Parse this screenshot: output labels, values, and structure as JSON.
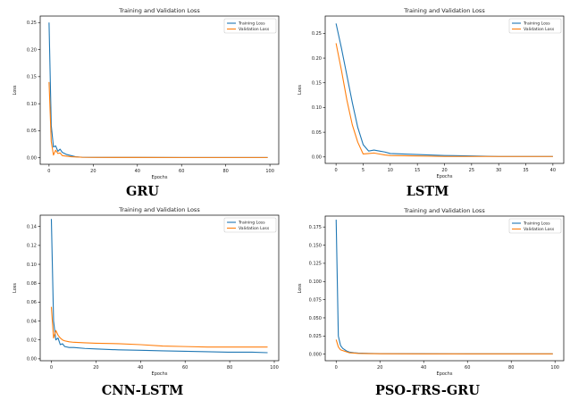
{
  "colors": {
    "training": "#1f77b4",
    "validation": "#ff7f0e",
    "axis": "#000000"
  },
  "chart_data": [
    {
      "type": "line",
      "caption": "GRU",
      "title": "Training and Validation Loss",
      "xlabel": "Epochs",
      "ylabel": "Loss",
      "xlim": [
        -4,
        104
      ],
      "ylim": [
        -0.012,
        0.262
      ],
      "xticks": [
        0,
        20,
        40,
        60,
        80,
        100
      ],
      "xtick_labels": [
        "0",
        "20",
        "40",
        "60",
        "80",
        "100"
      ],
      "yticks": [
        0.0,
        0.05,
        0.1,
        0.15,
        0.2,
        0.25
      ],
      "ytick_labels": [
        "0.00",
        "0.05",
        "0.10",
        "0.15",
        "0.20",
        "0.25"
      ],
      "legend": "top-right",
      "grid": false,
      "series": [
        {
          "name": "Training Loss",
          "x": [
            0,
            1,
            2,
            3,
            4,
            5,
            6,
            8,
            10,
            12,
            15,
            20,
            40,
            60,
            80,
            99
          ],
          "y": [
            0.25,
            0.06,
            0.02,
            0.022,
            0.012,
            0.016,
            0.01,
            0.006,
            0.004,
            0.002,
            0.001,
            0.0008,
            0.0007,
            0.0006,
            0.0006,
            0.0006
          ]
        },
        {
          "name": "Validation Loss",
          "x": [
            0,
            1,
            2,
            3,
            4,
            5,
            6,
            8,
            10,
            15,
            20,
            40,
            60,
            80,
            99
          ],
          "y": [
            0.14,
            0.03,
            0.005,
            0.014,
            0.008,
            0.009,
            0.004,
            0.003,
            0.002,
            0.001,
            0.0008,
            0.0007,
            0.0006,
            0.0006,
            0.0006
          ]
        }
      ]
    },
    {
      "type": "line",
      "caption": "LSTM",
      "title": "Training and Validation Loss",
      "xlabel": "Epochs",
      "ylabel": "Loss",
      "xlim": [
        -2,
        42
      ],
      "ylim": [
        -0.013,
        0.285
      ],
      "xticks": [
        0,
        5,
        10,
        15,
        20,
        25,
        30,
        35,
        40
      ],
      "xtick_labels": [
        "0",
        "5",
        "10",
        "15",
        "20",
        "25",
        "30",
        "35",
        "40"
      ],
      "yticks": [
        0.0,
        0.05,
        0.1,
        0.15,
        0.2,
        0.25
      ],
      "ytick_labels": [
        "0.00",
        "0.05",
        "0.10",
        "0.15",
        "0.20",
        "0.25"
      ],
      "legend": "top-right",
      "grid": false,
      "series": [
        {
          "name": "Training Loss",
          "x": [
            0,
            1,
            2,
            3,
            4,
            5,
            6,
            7,
            8,
            9,
            10,
            15,
            20,
            25,
            30,
            35,
            40
          ],
          "y": [
            0.27,
            0.22,
            0.165,
            0.11,
            0.06,
            0.025,
            0.012,
            0.014,
            0.012,
            0.01,
            0.007,
            0.005,
            0.003,
            0.002,
            0.001,
            0.001,
            0.001
          ]
        },
        {
          "name": "Validation Loss",
          "x": [
            0,
            1,
            2,
            3,
            4,
            5,
            6,
            7,
            8,
            9,
            10,
            15,
            20,
            25,
            30,
            35,
            40
          ],
          "y": [
            0.23,
            0.175,
            0.115,
            0.065,
            0.03,
            0.006,
            0.007,
            0.008,
            0.006,
            0.004,
            0.003,
            0.002,
            0.001,
            0.001,
            0.001,
            0.001,
            0.001
          ]
        }
      ]
    },
    {
      "type": "line",
      "caption": "CNN-LSTM",
      "title": "Training and Validation Loss",
      "xlabel": "Epochs",
      "ylabel": "Loss",
      "xlim": [
        -5,
        102
      ],
      "ylim": [
        -0.002,
        0.152
      ],
      "xticks": [
        0,
        20,
        40,
        60,
        80,
        100
      ],
      "xtick_labels": [
        "0",
        "20",
        "40",
        "60",
        "80",
        "100"
      ],
      "yticks": [
        0.0,
        0.02,
        0.04,
        0.06,
        0.08,
        0.1,
        0.12,
        0.14
      ],
      "ytick_labels": [
        "0.00",
        "0.02",
        "0.04",
        "0.06",
        "0.08",
        "0.10",
        "0.12",
        "0.14"
      ],
      "legend": "top-right",
      "grid": false,
      "series": [
        {
          "name": "Training Loss",
          "x": [
            0,
            1,
            2,
            3,
            4,
            5,
            6,
            8,
            10,
            15,
            20,
            30,
            40,
            50,
            60,
            70,
            80,
            90,
            97
          ],
          "y": [
            0.148,
            0.04,
            0.02,
            0.022,
            0.015,
            0.016,
            0.013,
            0.012,
            0.012,
            0.011,
            0.0105,
            0.0095,
            0.009,
            0.0085,
            0.008,
            0.0075,
            0.007,
            0.007,
            0.0065
          ]
        },
        {
          "name": "Validation Loss",
          "x": [
            0,
            1,
            2,
            3,
            4,
            5,
            6,
            8,
            10,
            15,
            20,
            30,
            40,
            50,
            60,
            70,
            80,
            90,
            97
          ],
          "y": [
            0.055,
            0.022,
            0.03,
            0.025,
            0.022,
            0.02,
            0.019,
            0.018,
            0.0175,
            0.017,
            0.0165,
            0.016,
            0.015,
            0.0135,
            0.013,
            0.0125,
            0.0125,
            0.0125,
            0.0125
          ]
        }
      ]
    },
    {
      "type": "line",
      "caption": "PSO-FRS-GRU",
      "title": "Training and Validation Loss",
      "xlabel": "Epochs",
      "ylabel": "Loss",
      "xlim": [
        -5,
        104
      ],
      "ylim": [
        -0.009,
        0.19
      ],
      "xticks": [
        0,
        20,
        40,
        60,
        80,
        100
      ],
      "xtick_labels": [
        "0",
        "20",
        "40",
        "60",
        "80",
        "100"
      ],
      "yticks": [
        0.0,
        0.025,
        0.05,
        0.075,
        0.1,
        0.125,
        0.15,
        0.175
      ],
      "ytick_labels": [
        "0.000",
        "0.025",
        "0.050",
        "0.075",
        "0.100",
        "0.125",
        "0.150",
        "0.175"
      ],
      "legend": "top-right",
      "grid": false,
      "series": [
        {
          "name": "Training Loss",
          "x": [
            0,
            1,
            2,
            3,
            4,
            5,
            6,
            8,
            10,
            15,
            20,
            40,
            60,
            80,
            99
          ],
          "y": [
            0.185,
            0.025,
            0.012,
            0.008,
            0.006,
            0.004,
            0.003,
            0.002,
            0.0015,
            0.001,
            0.0008,
            0.0006,
            0.0005,
            0.0005,
            0.0005
          ]
        },
        {
          "name": "Validation Loss",
          "x": [
            0,
            1,
            2,
            3,
            4,
            5,
            6,
            8,
            10,
            15,
            20,
            40,
            60,
            80,
            99
          ],
          "y": [
            0.02,
            0.01,
            0.006,
            0.005,
            0.004,
            0.003,
            0.002,
            0.0015,
            0.001,
            0.0008,
            0.0006,
            0.0005,
            0.0005,
            0.0005,
            0.0005
          ]
        }
      ]
    }
  ]
}
